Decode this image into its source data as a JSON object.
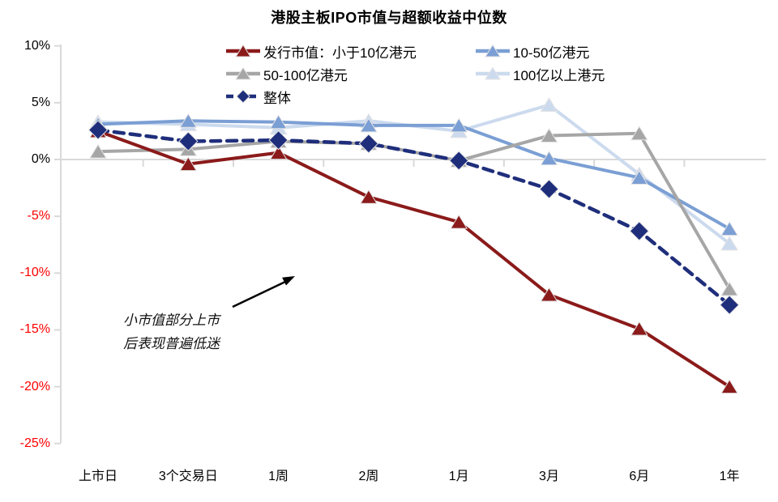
{
  "chart_data": {
    "type": "line",
    "title": "港股主板IPO市值与超额收益中位数",
    "categories": [
      "上市日",
      "3个交易日",
      "1周",
      "2周",
      "1月",
      "3月",
      "6月",
      "1年"
    ],
    "xlabel": "",
    "ylabel": "",
    "ylim": [
      -25,
      10
    ],
    "y_ticks": {
      "values": [
        10,
        5,
        0,
        -5,
        -10,
        -15,
        -20,
        -25
      ],
      "labels": [
        "10%",
        "5%",
        "0%",
        "-5%",
        "-10%",
        "-15%",
        "-20%",
        "-25%"
      ]
    },
    "grid": "zero-line-only",
    "legend_position": "top-inside-two-columns",
    "series": [
      {
        "name": "发行市值：小于10亿港元",
        "color": "#8B1A1A",
        "marker": "triangle",
        "line_style": "solid",
        "values": [
          2.5,
          -0.4,
          0.6,
          -3.3,
          -5.5,
          -11.9,
          -14.9,
          -20.0
        ]
      },
      {
        "name": "10-50亿港元",
        "color": "#7B9FD4",
        "marker": "triangle",
        "line_style": "solid",
        "values": [
          3.1,
          3.4,
          3.3,
          3.0,
          3.0,
          0.1,
          -1.6,
          -6.1
        ]
      },
      {
        "name": "50-100亿港元",
        "color": "#A6A6A6",
        "marker": "triangle",
        "line_style": "solid",
        "values": [
          0.7,
          0.9,
          1.6,
          1.4,
          -0.1,
          2.1,
          2.3,
          -11.4
        ]
      },
      {
        "name": "100亿以上港元",
        "color": "#CCDAEE",
        "marker": "triangle",
        "line_style": "solid",
        "values": [
          3.3,
          3.1,
          2.8,
          3.4,
          2.5,
          4.8,
          -1.3,
          -7.4
        ]
      },
      {
        "name": "整体",
        "color": "#1F2E7B",
        "marker": "diamond",
        "line_style": "dashed",
        "values": [
          2.6,
          1.6,
          1.7,
          1.4,
          -0.1,
          -2.6,
          -6.3,
          -12.8
        ]
      }
    ],
    "annotation": {
      "line1": "小市值部分上市",
      "line2": "后表现普遍低迷"
    },
    "axis_colors": {
      "positive_tick_label": "#000000",
      "negative_tick_label": "#FF0000",
      "axis_line": "#D9D9D9",
      "annotation_arrow": "#000000"
    }
  }
}
